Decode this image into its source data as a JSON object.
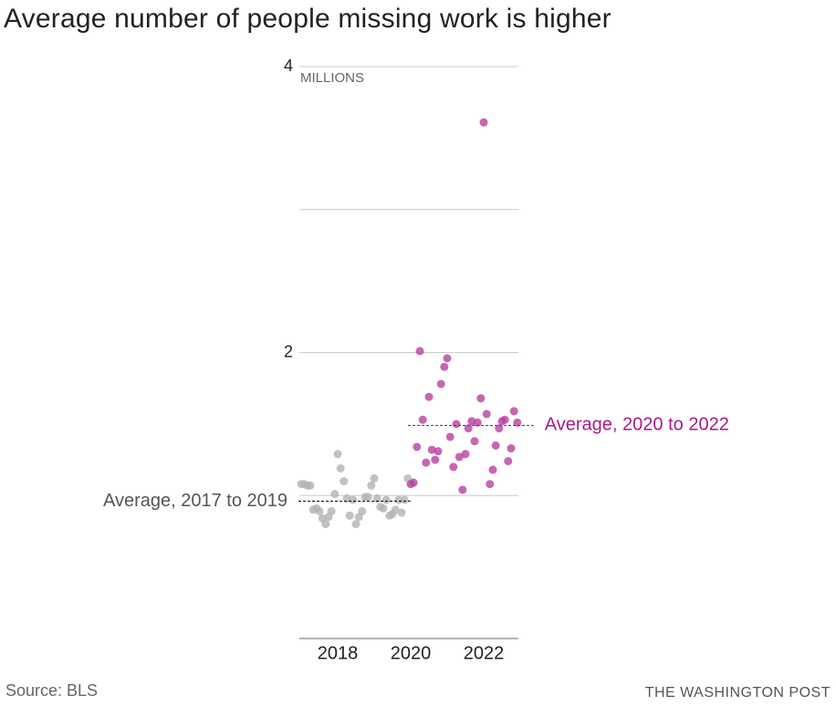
{
  "chart_data": {
    "type": "scatter",
    "title": "Average number of people missing work is higher",
    "y_unit_label": "MILLIONS",
    "source": "Source: BLS",
    "credit": "THE WASHINGTON POST",
    "xlim": [
      2017,
      2023
    ],
    "ylim": [
      0,
      4
    ],
    "xticks": [
      2018,
      2020,
      2022
    ],
    "yticks": [
      2,
      4
    ],
    "minor_grid": [
      1,
      3
    ],
    "series": [
      {
        "color": "#b3b3b3",
        "x": [
          2017.0,
          2017.08,
          2017.17,
          2017.25,
          2017.33,
          2017.42,
          2017.5,
          2017.58,
          2017.67,
          2017.75,
          2017.83,
          2017.92,
          2018.0,
          2018.08,
          2018.17,
          2018.25,
          2018.33,
          2018.42,
          2018.5,
          2018.58,
          2018.67,
          2018.75,
          2018.83,
          2018.92,
          2019.0,
          2019.08,
          2019.17,
          2019.25,
          2019.33,
          2019.42,
          2019.5,
          2019.58,
          2019.67,
          2019.75,
          2019.83,
          2019.92
        ],
        "values": [
          1.08,
          1.08,
          1.07,
          1.07,
          0.9,
          0.91,
          0.89,
          0.84,
          0.8,
          0.85,
          0.89,
          1.01,
          1.29,
          1.19,
          1.1,
          0.98,
          0.86,
          0.97,
          0.8,
          0.85,
          0.89,
          0.99,
          0.99,
          1.07,
          1.12,
          0.98,
          0.92,
          0.91,
          0.97,
          0.86,
          0.87,
          0.9,
          0.97,
          0.88,
          0.97,
          1.12
        ]
      },
      {
        "color": "#b8409f",
        "x": [
          2020.0,
          2020.08,
          2020.17,
          2020.25,
          2020.33,
          2020.42,
          2020.5,
          2020.58,
          2020.67,
          2020.75,
          2020.83,
          2020.92,
          2021.0,
          2021.08,
          2021.17,
          2021.25,
          2021.33,
          2021.42,
          2021.5,
          2021.58,
          2021.67,
          2021.75,
          2021.83,
          2021.92,
          2022.0,
          2022.08,
          2022.17,
          2022.25,
          2022.33,
          2022.42,
          2022.5,
          2022.58,
          2022.67,
          2022.75,
          2022.83,
          2022.92
        ],
        "values": [
          1.08,
          1.09,
          1.34,
          2.01,
          1.53,
          1.23,
          1.69,
          1.32,
          1.25,
          1.31,
          1.78,
          1.9,
          1.96,
          1.41,
          1.2,
          1.5,
          1.27,
          1.04,
          1.29,
          1.47,
          1.52,
          1.38,
          1.51,
          1.68,
          3.61,
          1.57,
          1.08,
          1.18,
          1.35,
          1.47,
          1.52,
          1.53,
          1.24,
          1.33,
          1.59,
          1.51
        ]
      }
    ],
    "averages": [
      {
        "label": "Average, 2017 to 2019",
        "value": 0.96,
        "color": "#555555",
        "line_color": "#222222",
        "series": 0,
        "side": "left"
      },
      {
        "label": "Average, 2020 to 2022",
        "value": 1.49,
        "color": "#a8198c",
        "line_color": "#a8198c",
        "series": 1,
        "side": "right"
      }
    ]
  }
}
